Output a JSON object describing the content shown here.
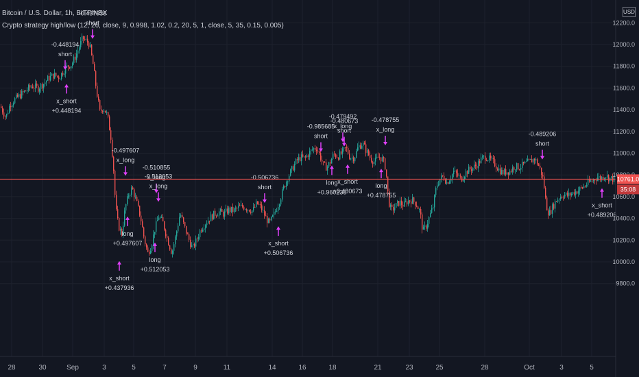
{
  "header": {
    "title": "Bitcoin / U.S. Dollar, 1h, BITFINEX",
    "study": "Crypto strategy high/low (12, 26, close, 9, 0.998, 1.02, 0.2, 20, 5, 1, close, 5, 35, 0.15, 0.005)",
    "currency": "USD"
  },
  "colors": {
    "background": "#131722",
    "up": "#26a69a",
    "down": "#ef5350",
    "signal": "#e040fb",
    "exit_arrow": "#4fc3f7",
    "grid": "#1e222d",
    "axis_text": "#b2b5be",
    "price_line": "#ef5350"
  },
  "chart_data": {
    "type": "candlestick",
    "y_axis": {
      "ticks": [
        "12200.0",
        "12000.0",
        "11800.0",
        "11600.0",
        "11400.0",
        "11200.0",
        "11000.0",
        "10800.0",
        "10600.0",
        "10400.0",
        "10200.0",
        "10000.0",
        "9800.0"
      ],
      "range": [
        9700,
        12250
      ]
    },
    "x_axis": {
      "ticks": [
        "28",
        "30",
        "Sep",
        "3",
        "5",
        "7",
        "9",
        "11",
        "14",
        "16",
        "18",
        "21",
        "23",
        "25",
        "28",
        "Oct",
        "3",
        "5"
      ]
    },
    "last_price_label": "10761.0",
    "countdown_label": "35:08",
    "last_price": 10761,
    "path": [
      [
        0,
        11430
      ],
      [
        8,
        11330
      ],
      [
        14,
        11450
      ],
      [
        22,
        11500
      ],
      [
        30,
        11540
      ],
      [
        38,
        11580
      ],
      [
        46,
        11620
      ],
      [
        55,
        11600
      ],
      [
        63,
        11640
      ],
      [
        70,
        11690
      ],
      [
        78,
        11720
      ],
      [
        86,
        11700
      ],
      [
        92,
        11760
      ],
      [
        98,
        11800
      ],
      [
        104,
        11820
      ],
      [
        110,
        11900
      ],
      [
        115,
        11980
      ],
      [
        120,
        12060
      ],
      [
        126,
        12030
      ],
      [
        130,
        12000
      ],
      [
        135,
        11820
      ],
      [
        140,
        11580
      ],
      [
        145,
        11380
      ],
      [
        150,
        11420
      ],
      [
        156,
        11350
      ],
      [
        161,
        11150
      ],
      [
        165,
        10850
      ],
      [
        168,
        10500
      ],
      [
        172,
        10330
      ],
      [
        177,
        10260
      ],
      [
        182,
        10500
      ],
      [
        187,
        10620
      ],
      [
        192,
        10680
      ],
      [
        198,
        10560
      ],
      [
        204,
        10420
      ],
      [
        210,
        10200
      ],
      [
        215,
        10080
      ],
      [
        220,
        10150
      ],
      [
        225,
        10300
      ],
      [
        231,
        10420
      ],
      [
        237,
        10360
      ],
      [
        243,
        10220
      ],
      [
        250,
        10080
      ],
      [
        256,
        10250
      ],
      [
        262,
        10450
      ],
      [
        268,
        10330
      ],
      [
        274,
        10220
      ],
      [
        280,
        10120
      ],
      [
        286,
        10200
      ],
      [
        292,
        10300
      ],
      [
        298,
        10350
      ],
      [
        305,
        10400
      ],
      [
        312,
        10440
      ],
      [
        319,
        10460
      ],
      [
        326,
        10440
      ],
      [
        333,
        10480
      ],
      [
        340,
        10470
      ],
      [
        347,
        10500
      ],
      [
        354,
        10510
      ],
      [
        361,
        10490
      ],
      [
        368,
        10470
      ],
      [
        374,
        10540
      ],
      [
        380,
        10500
      ],
      [
        386,
        10420
      ],
      [
        392,
        10350
      ],
      [
        397,
        10410
      ],
      [
        402,
        10480
      ],
      [
        408,
        10580
      ],
      [
        414,
        10700
      ],
      [
        420,
        10790
      ],
      [
        426,
        10860
      ],
      [
        432,
        10930
      ],
      [
        438,
        10960
      ],
      [
        444,
        10950
      ],
      [
        450,
        11000
      ],
      [
        456,
        11040
      ],
      [
        461,
        11050
      ],
      [
        466,
        10980
      ],
      [
        471,
        10890
      ],
      [
        476,
        10870
      ],
      [
        481,
        10920
      ],
      [
        486,
        10990
      ],
      [
        492,
        10970
      ],
      [
        498,
        11000
      ],
      [
        504,
        11050
      ],
      [
        510,
        10960
      ],
      [
        516,
        10960
      ],
      [
        522,
        11060
      ],
      [
        528,
        11090
      ],
      [
        534,
        11020
      ],
      [
        540,
        10950
      ],
      [
        546,
        10920
      ],
      [
        552,
        10970
      ],
      [
        558,
        10940
      ],
      [
        562,
        10860
      ],
      [
        566,
        10560
      ],
      [
        570,
        10470
      ],
      [
        576,
        10510
      ],
      [
        582,
        10550
      ],
      [
        588,
        10520
      ],
      [
        594,
        10560
      ],
      [
        600,
        10570
      ],
      [
        606,
        10540
      ],
      [
        612,
        10460
      ],
      [
        616,
        10280
      ],
      [
        621,
        10330
      ],
      [
        626,
        10420
      ],
      [
        631,
        10510
      ],
      [
        636,
        10700
      ],
      [
        641,
        10760
      ],
      [
        646,
        10790
      ],
      [
        651,
        10730
      ],
      [
        656,
        10770
      ],
      [
        661,
        10830
      ],
      [
        666,
        10800
      ],
      [
        672,
        10760
      ],
      [
        678,
        10820
      ],
      [
        684,
        10850
      ],
      [
        690,
        10870
      ],
      [
        696,
        10900
      ],
      [
        702,
        10950
      ],
      [
        708,
        10970
      ],
      [
        714,
        10940
      ],
      [
        720,
        10910
      ],
      [
        726,
        10860
      ],
      [
        732,
        10820
      ],
      [
        738,
        10830
      ],
      [
        744,
        10840
      ],
      [
        750,
        10880
      ],
      [
        756,
        10870
      ],
      [
        762,
        10890
      ],
      [
        768,
        10910
      ],
      [
        774,
        10930
      ],
      [
        779,
        10950
      ],
      [
        784,
        10900
      ],
      [
        788,
        10840
      ],
      [
        792,
        10750
      ],
      [
        796,
        10520
      ],
      [
        800,
        10440
      ],
      [
        805,
        10500
      ],
      [
        810,
        10560
      ],
      [
        816,
        10600
      ],
      [
        822,
        10620
      ],
      [
        828,
        10610
      ],
      [
        834,
        10630
      ],
      [
        840,
        10650
      ],
      [
        846,
        10670
      ],
      [
        852,
        10700
      ],
      [
        858,
        10730
      ],
      [
        864,
        10750
      ],
      [
        870,
        10780
      ],
      [
        876,
        10770
      ],
      [
        882,
        10800
      ],
      [
        888,
        10770
      ],
      [
        894,
        10761
      ],
      [
        898,
        10761
      ]
    ],
    "markers": [
      {
        "x": 95,
        "price": 11755,
        "lines": [
          "-0.448194",
          "short"
        ],
        "label_pos": "above",
        "arrow": "down"
      },
      {
        "x": 97,
        "price": 11650,
        "lines": [
          "x_short",
          "+0.448194"
        ],
        "label_pos": "below",
        "arrow": "up"
      },
      {
        "x": 135,
        "price": 12040,
        "lines": [
          "-0.437936",
          "short"
        ],
        "label_pos": "above",
        "arrow": "down"
      },
      {
        "x": 174,
        "price": 10020,
        "lines": [
          "x_short",
          "+0.437936"
        ],
        "label_pos": "below",
        "arrow": "up"
      },
      {
        "x": 183,
        "price": 10780,
        "lines": [
          "-0.497607",
          "x_long"
        ],
        "label_pos": "above",
        "arrow": "down"
      },
      {
        "x": 186,
        "price": 10430,
        "lines": [
          "long",
          "+0.497607"
        ],
        "label_pos": "below",
        "arrow": "up"
      },
      {
        "x": 228,
        "price": 10620,
        "lines": [
          "-0.510855",
          "x_long"
        ],
        "label_pos": "above",
        "arrow": "down"
      },
      {
        "x": 231,
        "price": 10540,
        "lines": [
          "-0.512053",
          "x_long"
        ],
        "label_pos": "above",
        "arrow": "down"
      },
      {
        "x": 226,
        "price": 10190,
        "lines": [
          "long",
          "+0.512053"
        ],
        "label_pos": "below",
        "arrow": "up"
      },
      {
        "x": 386,
        "price": 10530,
        "lines": [
          "-0.506736",
          "short"
        ],
        "label_pos": "above",
        "arrow": "down"
      },
      {
        "x": 406,
        "price": 10340,
        "lines": [
          "x_short",
          "+0.506736"
        ],
        "label_pos": "below",
        "arrow": "up"
      },
      {
        "x": 468,
        "price": 11000,
        "lines": [
          "-0.985685",
          "short"
        ],
        "label_pos": "above",
        "arrow": "down"
      },
      {
        "x": 484,
        "price": 10900,
        "lines": [
          "long",
          "+0.960235"
        ],
        "label_pos": "below",
        "arrow": "up"
      },
      {
        "x": 500,
        "price": 11090,
        "lines": [
          "-0.479492",
          "x_long"
        ],
        "label_pos": "above",
        "arrow": "down"
      },
      {
        "x": 502,
        "price": 11050,
        "lines": [
          "-0.480673",
          "short"
        ],
        "label_pos": "above",
        "arrow": "down"
      },
      {
        "x": 507,
        "price": 10910,
        "lines": [
          "x_short",
          "+0.480673"
        ],
        "label_pos": "below",
        "arrow": "up"
      },
      {
        "x": 562,
        "price": 11060,
        "lines": [
          "-0.478755",
          "x_long"
        ],
        "label_pos": "above",
        "arrow": "down"
      },
      {
        "x": 556,
        "price": 10870,
        "lines": [
          "long",
          "+0.478755"
        ],
        "label_pos": "below",
        "arrow": "up"
      },
      {
        "x": 791,
        "price": 10930,
        "lines": [
          "-0.489206",
          "short"
        ],
        "label_pos": "above",
        "arrow": "down"
      },
      {
        "x": 878,
        "price": 10690,
        "lines": [
          "x_short",
          "+0.489206"
        ],
        "label_pos": "below",
        "arrow": "up"
      }
    ]
  }
}
